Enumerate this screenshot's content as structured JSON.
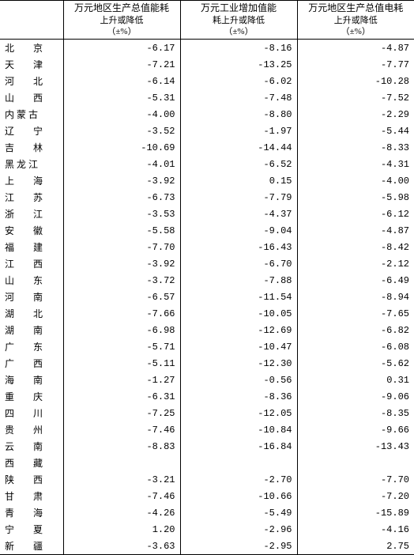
{
  "table": {
    "columns": [
      {
        "title_l1": "万元地区生产总值能耗",
        "title_l2": "上升或降低",
        "unit": "（±%）"
      },
      {
        "title_l1": "万元工业增加值能",
        "title_l2": "耗上升或降低",
        "unit": "（±%）"
      },
      {
        "title_l1": "万元地区生产总值电耗",
        "title_l2": "上升或降低",
        "unit": "（±%）"
      }
    ],
    "col_widths": [
      "80px",
      "148px",
      "148px",
      "148px"
    ],
    "rows": [
      {
        "label": "北　　京",
        "v": [
          "-6.17",
          "-8.16",
          "-4.87"
        ]
      },
      {
        "label": "天　　津",
        "v": [
          "-7.21",
          "-13.25",
          "-7.77"
        ]
      },
      {
        "label": "河　　北",
        "v": [
          "-6.14",
          "-6.02",
          "-10.28"
        ]
      },
      {
        "label": "山　　西",
        "v": [
          "-5.31",
          "-7.48",
          "-7.52"
        ]
      },
      {
        "label": "内 蒙 古",
        "v": [
          "-4.00",
          "-8.80",
          "-2.29"
        ]
      },
      {
        "label": "辽　　宁",
        "v": [
          "-3.52",
          "-1.97",
          "-5.44"
        ]
      },
      {
        "label": "吉　　林",
        "v": [
          "-10.69",
          "-14.44",
          "-8.33"
        ]
      },
      {
        "label": "黑 龙 江",
        "v": [
          "-4.01",
          "-6.52",
          "-4.31"
        ]
      },
      {
        "label": "上　　海",
        "v": [
          "-3.92",
          "0.15",
          "-4.00"
        ]
      },
      {
        "label": "江　　苏",
        "v": [
          "-6.73",
          "-7.79",
          "-5.98"
        ]
      },
      {
        "label": "浙　　江",
        "v": [
          "-3.53",
          "-4.37",
          "-6.12"
        ]
      },
      {
        "label": "安　　徽",
        "v": [
          "-5.58",
          "-9.04",
          "-4.87"
        ]
      },
      {
        "label": "福　　建",
        "v": [
          "-7.70",
          "-16.43",
          "-8.42"
        ]
      },
      {
        "label": "江　　西",
        "v": [
          "-3.92",
          "-6.70",
          "-2.12"
        ]
      },
      {
        "label": "山　　东",
        "v": [
          "-3.72",
          "-7.88",
          "-6.49"
        ]
      },
      {
        "label": "河　　南",
        "v": [
          "-6.57",
          "-11.54",
          "-8.94"
        ]
      },
      {
        "label": "湖　　北",
        "v": [
          "-7.66",
          "-10.05",
          "-7.65"
        ]
      },
      {
        "label": "湖　　南",
        "v": [
          "-6.98",
          "-12.69",
          "-6.82"
        ]
      },
      {
        "label": "广　　东",
        "v": [
          "-5.71",
          "-10.47",
          "-6.08"
        ]
      },
      {
        "label": "广　　西",
        "v": [
          "-5.11",
          "-12.30",
          "-5.62"
        ]
      },
      {
        "label": "海　　南",
        "v": [
          "-1.27",
          "-0.56",
          "0.31"
        ]
      },
      {
        "label": "重　　庆",
        "v": [
          "-6.31",
          "-8.36",
          "-9.06"
        ]
      },
      {
        "label": "四　　川",
        "v": [
          "-7.25",
          "-12.05",
          "-8.35"
        ]
      },
      {
        "label": "贵　　州",
        "v": [
          "-7.46",
          "-10.84",
          "-9.66"
        ]
      },
      {
        "label": "云　　南",
        "v": [
          "-8.83",
          "-16.84",
          "-13.43"
        ]
      },
      {
        "label": "西　　藏",
        "v": [
          "",
          "",
          ""
        ]
      },
      {
        "label": "陕　　西",
        "v": [
          "-3.21",
          "-2.70",
          "-7.70"
        ]
      },
      {
        "label": "甘　　肃",
        "v": [
          "-7.46",
          "-10.66",
          "-7.20"
        ]
      },
      {
        "label": "青　　海",
        "v": [
          "-4.26",
          "-5.49",
          "-15.89"
        ]
      },
      {
        "label": "宁　　夏",
        "v": [
          "1.20",
          "-2.96",
          "-4.16"
        ]
      },
      {
        "label": "新　　疆",
        "v": [
          "-3.63",
          "-2.95",
          "2.75"
        ]
      }
    ]
  }
}
